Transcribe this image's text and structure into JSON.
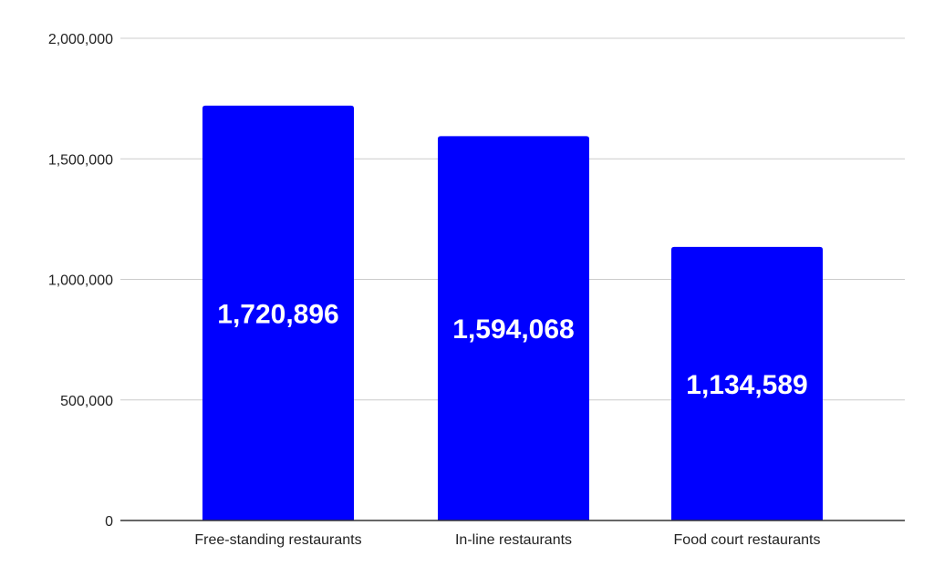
{
  "chart_data": {
    "type": "bar",
    "title": "",
    "xlabel": "",
    "ylabel": "",
    "categories": [
      "Free-standing restaurants",
      "In-line restaurants",
      "Food court restaurants"
    ],
    "values": [
      1720896,
      1594068,
      1134589
    ],
    "data_labels": [
      "1,720,896",
      "1,594,068",
      "1,134,589"
    ],
    "ylim": [
      0,
      2000000
    ],
    "yticks": [
      0,
      500000,
      1000000,
      1500000,
      2000000
    ],
    "ytick_labels": [
      "0",
      "500,000",
      "1,000,000",
      "1,500,000",
      "2,000,000"
    ],
    "grid": true,
    "legend": "none",
    "bar_color": "#0000ff",
    "grid_color": "#cccccc",
    "axis_color": "#333333"
  }
}
